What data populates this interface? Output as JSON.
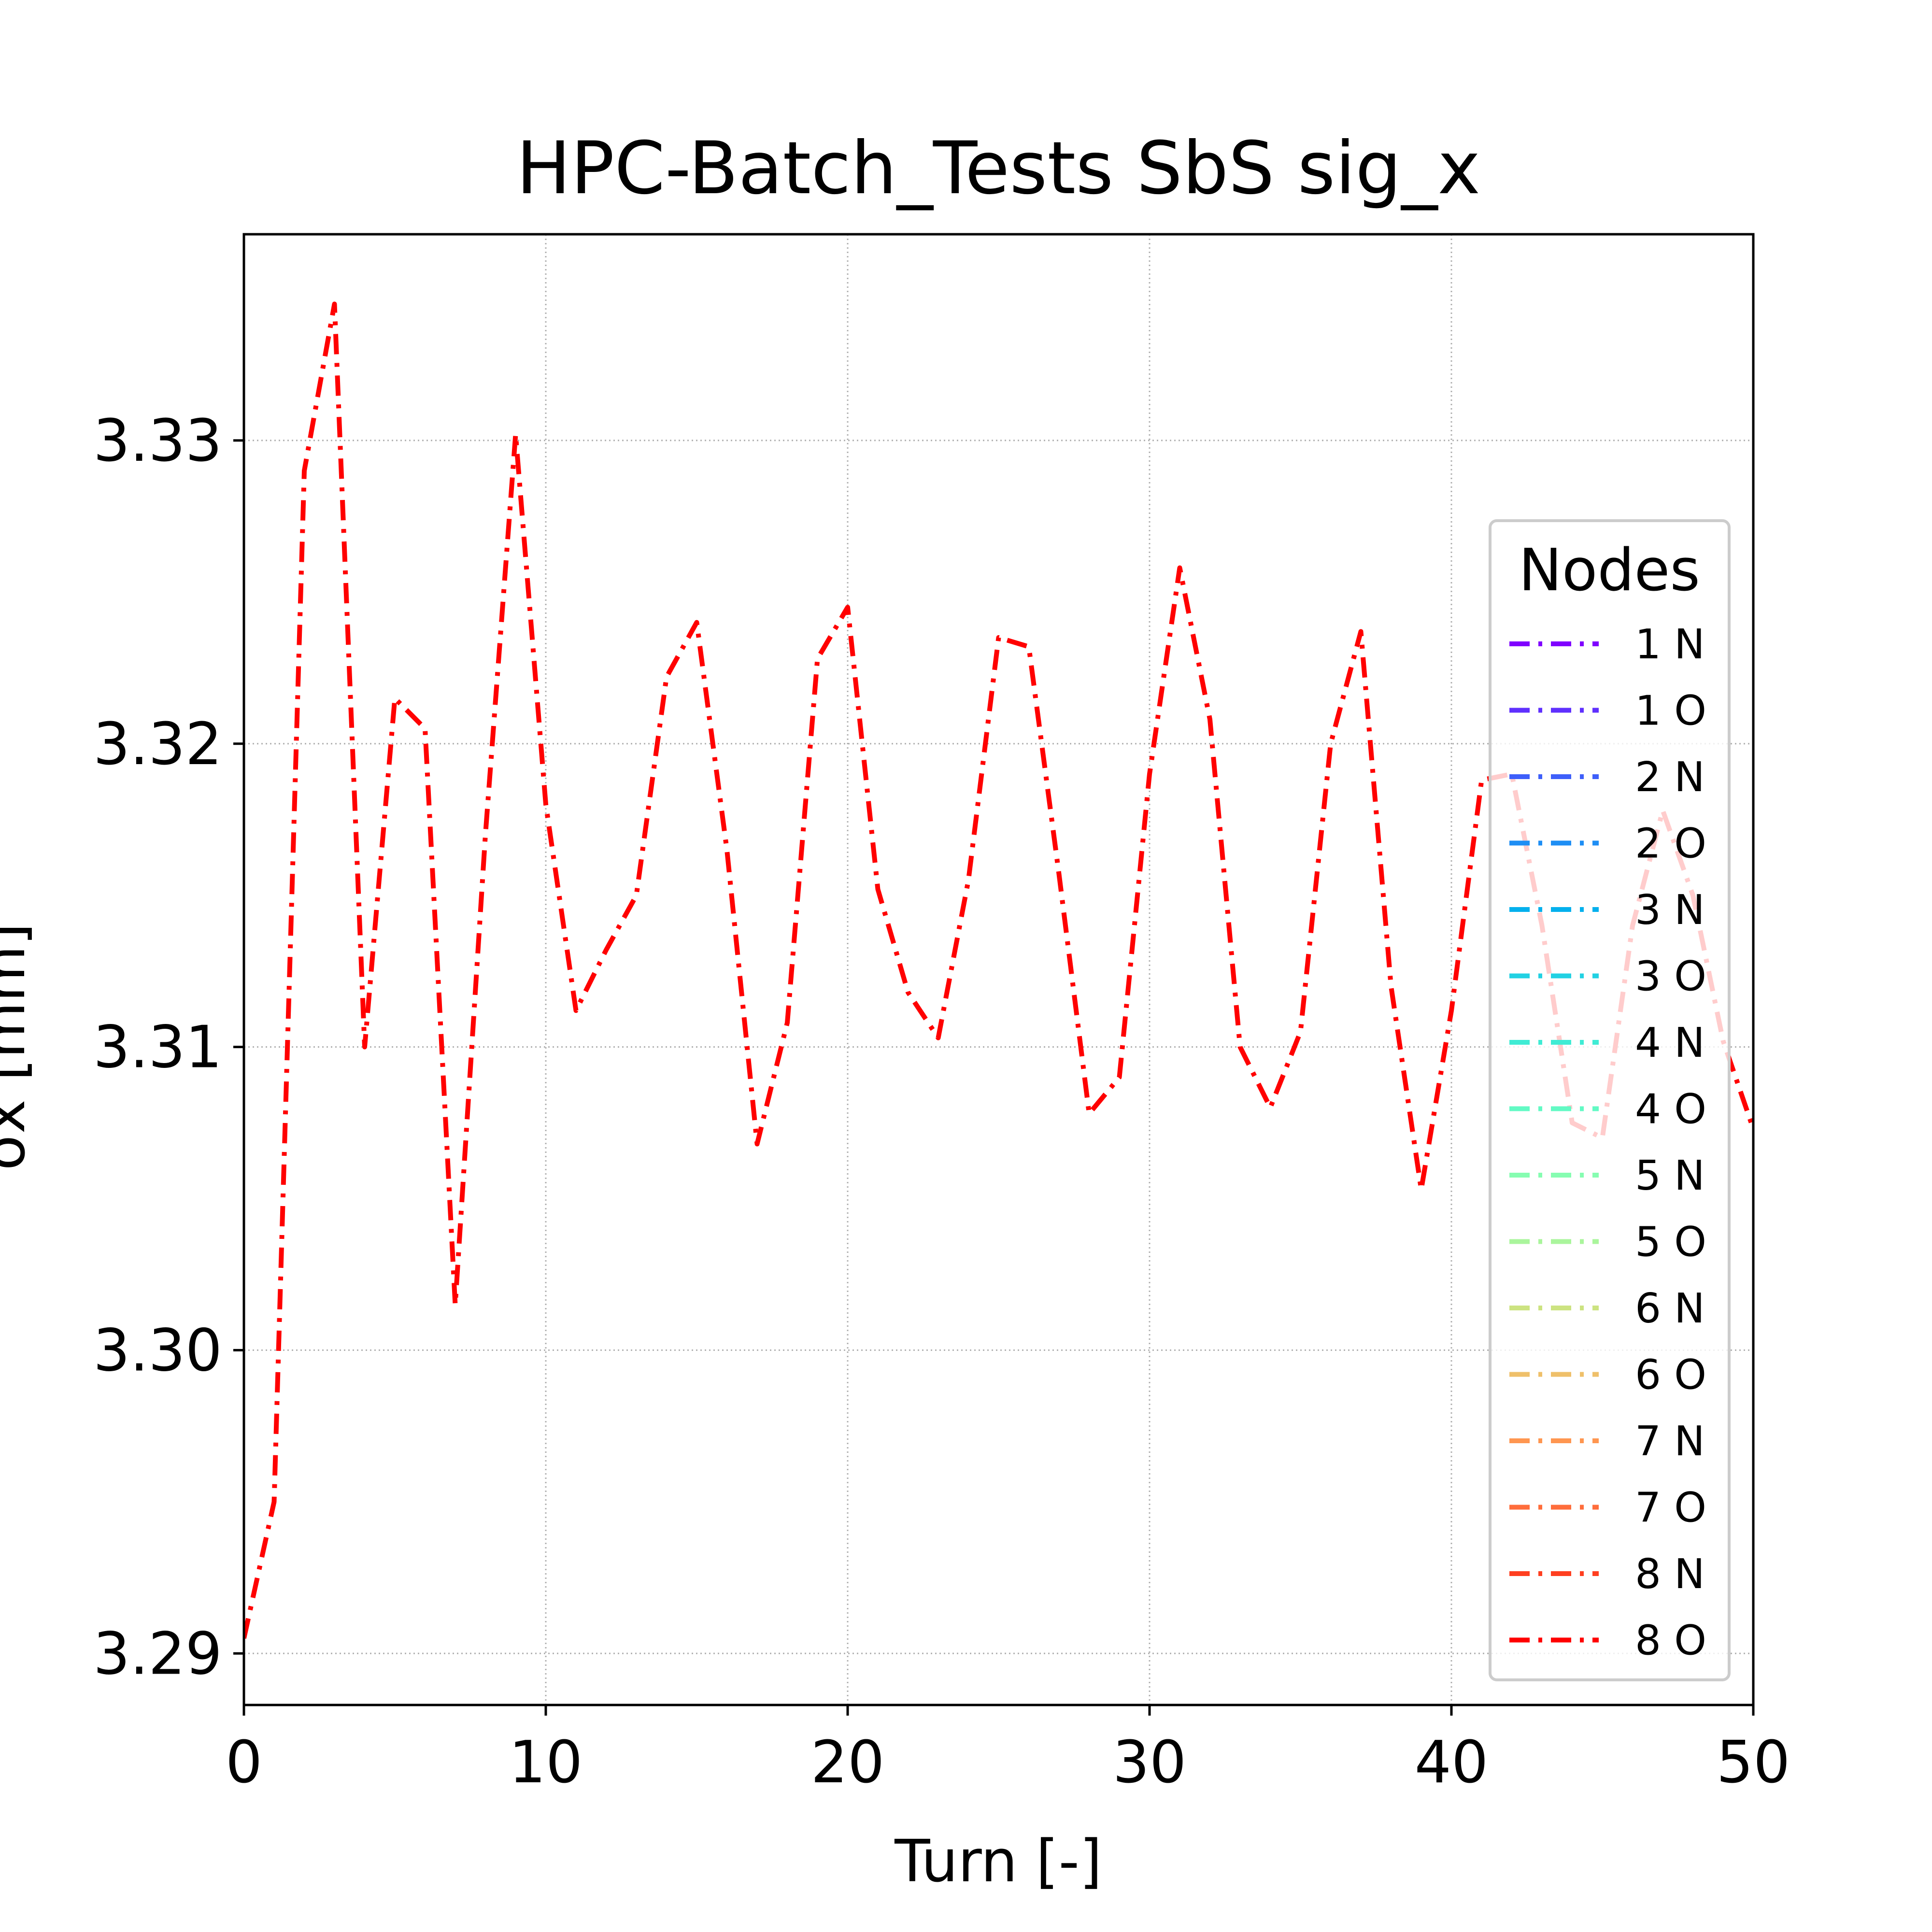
{
  "chart_data": {
    "type": "line",
    "title": "HPC-Batch_Tests SbS sig_x",
    "xlabel": "Turn [-]",
    "ylabel": "σx [mm]",
    "xlim": [
      0,
      50
    ],
    "ylim": [
      3.2883,
      3.3368
    ],
    "xticks": [
      0,
      10,
      20,
      30,
      40,
      50
    ],
    "xtick_labels": [
      "0",
      "10",
      "20",
      "30",
      "40",
      "50"
    ],
    "yticks": [
      3.29,
      3.3,
      3.31,
      3.32,
      3.33
    ],
    "ytick_labels": [
      "3.29",
      "3.30",
      "3.31",
      "3.32",
      "3.33"
    ],
    "grid": true,
    "legend": {
      "title": "Nodes",
      "placement": "right",
      "entries": [
        {
          "label": "1 N",
          "color": "#8000ff"
        },
        {
          "label": "1 O",
          "color": "#5f30fe"
        },
        {
          "label": "2 N",
          "color": "#3e5ffa"
        },
        {
          "label": "2 O",
          "color": "#1e8ef4"
        },
        {
          "label": "3 N",
          "color": "#03b0ed"
        },
        {
          "label": "3 O",
          "color": "#22d1e3"
        },
        {
          "label": "4 N",
          "color": "#40ecd4"
        },
        {
          "label": "4 O",
          "color": "#62fac4"
        },
        {
          "label": "5 N",
          "color": "#86fdb1"
        },
        {
          "label": "5 O",
          "color": "#aaf59c"
        },
        {
          "label": "6 N",
          "color": "#cce381"
        },
        {
          "label": "6 O",
          "color": "#efc06a"
        },
        {
          "label": "7 N",
          "color": "#ff9650"
        },
        {
          "label": "7 O",
          "color": "#ff6d3b"
        },
        {
          "label": "8 N",
          "color": "#ff3f20"
        },
        {
          "label": "8 O",
          "color": "#ff0000"
        }
      ]
    },
    "series": [
      {
        "name": "8 O",
        "color": "#ff0000",
        "x": [
          0,
          1,
          2,
          3,
          4,
          5,
          6,
          7,
          8,
          9,
          10,
          11,
          12,
          13,
          14,
          15,
          16,
          17,
          18,
          19,
          20,
          21,
          22,
          23,
          24,
          25,
          26,
          27,
          28,
          29,
          30,
          31,
          32,
          33,
          34,
          35,
          36,
          37,
          38,
          39,
          40,
          41,
          42,
          43,
          44,
          45,
          46,
          47,
          48,
          49,
          50
        ],
        "y": [
          3.2905,
          3.295,
          3.329,
          3.3345,
          3.31,
          3.3215,
          3.3205,
          3.3015,
          3.317,
          3.3302,
          3.318,
          3.3112,
          3.3132,
          3.315,
          3.3222,
          3.324,
          3.3165,
          3.3068,
          3.3108,
          3.3228,
          3.3245,
          3.3152,
          3.3118,
          3.3103,
          3.3155,
          3.3235,
          3.3232,
          3.3157,
          3.3078,
          3.309,
          3.319,
          3.3258,
          3.3208,
          3.31,
          3.308,
          3.3105,
          3.32,
          3.3237,
          3.312,
          3.3053,
          3.3112,
          3.3188,
          3.319,
          3.314,
          3.3075,
          3.307,
          3.314,
          3.3178,
          3.315,
          3.3102,
          3.3073
        ]
      }
    ]
  }
}
